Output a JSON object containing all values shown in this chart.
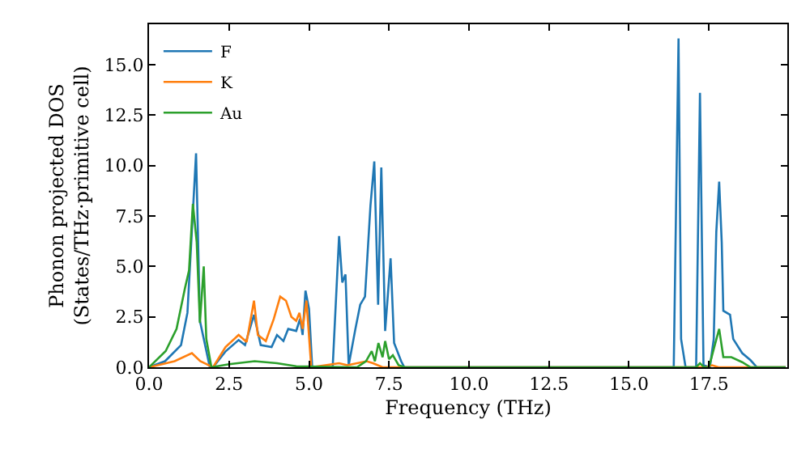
{
  "chart_data": {
    "type": "line",
    "xlabel": "Frequency (THz)",
    "ylabel": "Phonon projected DOS\n(States/THz·primitive cell)",
    "xlim": [
      0,
      19.95
    ],
    "ylim": [
      0,
      17.0
    ],
    "xticks": [
      {
        "value": 0,
        "label": "0.0"
      },
      {
        "value": 2.5,
        "label": "2.5"
      },
      {
        "value": 5,
        "label": "5.0"
      },
      {
        "value": 7.5,
        "label": "7.5"
      },
      {
        "value": 10,
        "label": "10.0"
      },
      {
        "value": 12.5,
        "label": "12.5"
      },
      {
        "value": 15,
        "label": "15.0"
      },
      {
        "value": 17.5,
        "label": "17.5"
      }
    ],
    "yticks": [
      {
        "value": 0,
        "label": "0.0"
      },
      {
        "value": 2.5,
        "label": "2.5"
      },
      {
        "value": 5,
        "label": "5.0"
      },
      {
        "value": 7.5,
        "label": "7.5"
      },
      {
        "value": 10,
        "label": "10.0"
      },
      {
        "value": 12.5,
        "label": "12.5"
      },
      {
        "value": 15,
        "label": "15.0"
      }
    ],
    "grid": false,
    "legend": "top left",
    "marker": "none",
    "line_style": "solid",
    "series": [
      {
        "name": "F",
        "color": "#1f77b4",
        "x": [
          0,
          0.5,
          1.0,
          1.2,
          1.47,
          1.59,
          1.9,
          2.0,
          2.4,
          2.8,
          3.0,
          3.28,
          3.49,
          3.83,
          4.0,
          4.2,
          4.35,
          4.6,
          4.72,
          4.8,
          4.89,
          5.0,
          5.1,
          5.74,
          5.94,
          6.04,
          6.14,
          6.24,
          6.45,
          6.6,
          6.75,
          6.92,
          7.04,
          7.16,
          7.26,
          7.38,
          7.55,
          7.66,
          7.88,
          7.98,
          16.4,
          16.55,
          16.63,
          16.77,
          17.1,
          17.22,
          17.33,
          17.53,
          17.65,
          17.73,
          17.82,
          17.9,
          17.95,
          18.16,
          18.26,
          18.54,
          18.8,
          19.0,
          19.9
        ],
        "values": [
          0,
          0.3,
          1.1,
          2.7,
          10.6,
          2.3,
          0,
          0,
          0.8,
          1.35,
          1.1,
          2.6,
          1.1,
          1.0,
          1.6,
          1.3,
          1.9,
          1.8,
          2.4,
          1.6,
          3.8,
          2.9,
          0,
          0,
          6.5,
          4.2,
          4.6,
          0.1,
          1.9,
          3.1,
          3.5,
          8.0,
          10.2,
          3.1,
          9.9,
          1.8,
          5.4,
          1.2,
          0.3,
          0,
          0,
          16.3,
          1.4,
          0,
          0,
          13.6,
          0.1,
          0,
          1.4,
          6.7,
          9.2,
          6.2,
          2.8,
          2.6,
          1.4,
          0.7,
          0.35,
          0,
          0
        ]
      },
      {
        "name": "K",
        "color": "#ff7f0e",
        "x": [
          0,
          0.8,
          1.34,
          1.6,
          2.0,
          2.39,
          2.8,
          3.05,
          3.28,
          3.4,
          3.65,
          3.9,
          4.1,
          4.28,
          4.45,
          4.6,
          4.7,
          4.8,
          4.92,
          5.07,
          5.94,
          6.2,
          6.8,
          7.0,
          7.3,
          17.4,
          17.6,
          17.8,
          19.9
        ],
        "values": [
          0,
          0.3,
          0.7,
          0.3,
          0,
          1.0,
          1.6,
          1.25,
          3.3,
          1.6,
          1.3,
          2.4,
          3.5,
          3.3,
          2.5,
          2.3,
          2.7,
          1.9,
          3.3,
          0,
          0.2,
          0.1,
          0.3,
          0.2,
          0,
          0,
          0.1,
          0,
          0
        ]
      },
      {
        "name": "Au",
        "color": "#2ca02c",
        "x": [
          0,
          0.52,
          0.86,
          1.12,
          1.25,
          1.37,
          1.49,
          1.59,
          1.71,
          1.79,
          1.95,
          2.5,
          3.3,
          4.0,
          4.6,
          6.5,
          6.78,
          6.96,
          7.06,
          7.17,
          7.3,
          7.38,
          7.5,
          7.62,
          7.8,
          8.0,
          17.1,
          17.22,
          17.35,
          17.5,
          17.7,
          17.82,
          17.95,
          18.2,
          18.54,
          18.8,
          19.9
        ],
        "values": [
          0,
          0.8,
          1.9,
          3.9,
          4.8,
          8.1,
          6.2,
          2.2,
          5.0,
          1.4,
          0,
          0.15,
          0.3,
          0.2,
          0.05,
          0,
          0.3,
          0.8,
          0.3,
          1.2,
          0.5,
          1.3,
          0.4,
          0.6,
          0.1,
          0,
          0,
          0.2,
          0,
          0,
          1.2,
          1.9,
          0.5,
          0.5,
          0.25,
          0,
          0
        ]
      }
    ]
  }
}
